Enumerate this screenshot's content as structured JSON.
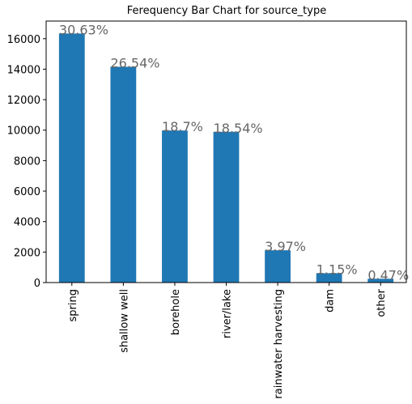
{
  "chart_data": {
    "type": "bar",
    "title": "Ferequency Bar Chart for source_type",
    "categories": [
      "spring",
      "shallow well",
      "borehole",
      "river/lake",
      "rainwater harvesting",
      "dam",
      "other"
    ],
    "values": [
      16341,
      14159,
      9977,
      9891,
      2118,
      614,
      251
    ],
    "value_labels": [
      "30.63%",
      "26.54%",
      "18.7%",
      "18.54%",
      "3.97%",
      "1.15%",
      "0.47%"
    ],
    "color": "#1f77b4",
    "ylim": [
      0,
      17158
    ],
    "yticks": [
      0,
      2000,
      4000,
      6000,
      8000,
      10000,
      12000,
      14000,
      16000
    ],
    "grid": false
  }
}
